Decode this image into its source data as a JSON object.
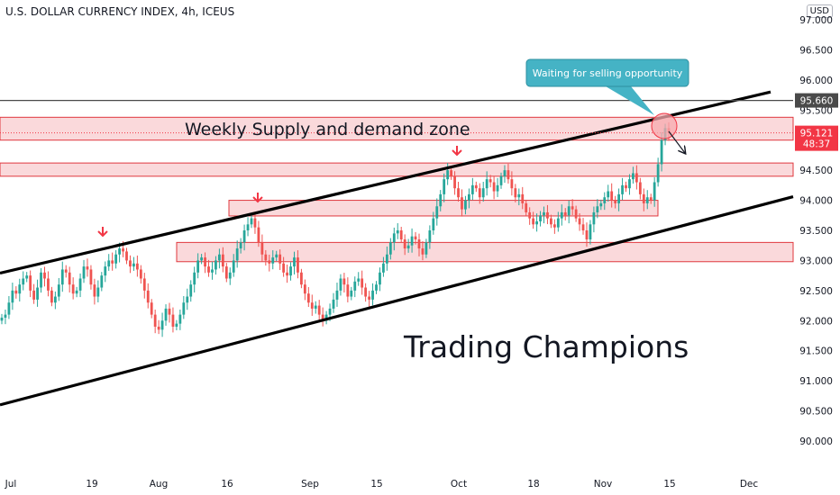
{
  "header": {
    "title": "U.S. DOLLAR CURRENCY INDEX, 4h, ICEUS",
    "currency": "USD"
  },
  "chart_data": {
    "type": "candlestick",
    "title": "U.S. DOLLAR CURRENCY INDEX, 4h, ICEUS",
    "y_ticks": [
      "97.000",
      "96.500",
      "96.000",
      "95.500",
      "95.000",
      "94.500",
      "94.000",
      "93.500",
      "93.000",
      "92.500",
      "92.000",
      "91.500",
      "91.000",
      "90.500",
      "90.000"
    ],
    "y_tick_values": [
      97.0,
      96.5,
      96.0,
      95.5,
      95.0,
      94.5,
      94.0,
      93.5,
      93.0,
      92.5,
      92.0,
      91.5,
      91.0,
      90.5,
      90.0
    ],
    "x_ticks": [
      "Jul",
      "19",
      "Aug",
      "16",
      "Sep",
      "15",
      "Oct",
      "18",
      "Nov",
      "15",
      "Dec"
    ],
    "ylim": [
      89.75,
      97.1
    ],
    "price_tags": {
      "resistance": {
        "value": "95.660",
        "color": "#4a4a4a"
      },
      "last": {
        "value": "95.121",
        "countdown": "48:37",
        "color": "#f23645"
      }
    },
    "resistance_level": 95.66,
    "zones": [
      {
        "name": "weekly-supply-demand",
        "low": 95.0,
        "high": 95.38
      },
      {
        "name": "zone-94-5",
        "low": 94.4,
        "high": 94.62
      },
      {
        "name": "zone-93-9",
        "low": 93.74,
        "high": 94.0
      },
      {
        "name": "zone-93-1",
        "low": 92.98,
        "high": 93.3
      }
    ],
    "channel_upper": {
      "start": 92.79,
      "end": 95.8
    },
    "channel_lower": {
      "start": 90.6,
      "end": 94.06
    },
    "annotations": {
      "zone_label": "Weekly Supply and demand zone",
      "callout": "Waiting for selling opportunity",
      "watermark": "Trading Champions"
    },
    "close_series": [
      92.05,
      92.1,
      92.3,
      92.5,
      92.45,
      92.6,
      92.7,
      92.75,
      92.5,
      92.35,
      92.55,
      92.8,
      92.7,
      92.5,
      92.3,
      92.4,
      92.6,
      92.85,
      92.8,
      92.6,
      92.45,
      92.5,
      92.7,
      92.9,
      92.85,
      92.6,
      92.4,
      92.55,
      92.75,
      92.9,
      93.0,
      92.95,
      93.1,
      93.2,
      93.15,
      93.0,
      92.9,
      92.95,
      92.85,
      92.7,
      92.5,
      92.3,
      92.1,
      91.9,
      91.85,
      92.0,
      92.2,
      92.1,
      91.9,
      91.95,
      92.1,
      92.3,
      92.4,
      92.6,
      92.8,
      93.0,
      93.05,
      92.9,
      92.8,
      92.85,
      93.0,
      93.1,
      92.9,
      92.7,
      92.8,
      93.0,
      93.2,
      93.3,
      93.5,
      93.6,
      93.7,
      93.55,
      93.3,
      93.1,
      93.0,
      92.95,
      93.05,
      93.1,
      92.95,
      92.8,
      92.75,
      92.9,
      93.05,
      92.8,
      92.6,
      92.45,
      92.3,
      92.2,
      92.25,
      92.1,
      92.0,
      92.1,
      92.2,
      92.35,
      92.5,
      92.7,
      92.6,
      92.4,
      92.5,
      92.65,
      92.7,
      92.55,
      92.4,
      92.35,
      92.5,
      92.6,
      92.8,
      92.95,
      93.1,
      93.3,
      93.45,
      93.5,
      93.35,
      93.2,
      93.25,
      93.4,
      93.35,
      93.2,
      93.1,
      93.3,
      93.5,
      93.7,
      93.9,
      94.1,
      94.35,
      94.5,
      94.4,
      94.2,
      94.05,
      93.85,
      94.0,
      94.1,
      94.25,
      94.2,
      94.05,
      94.2,
      94.35,
      94.3,
      94.15,
      94.25,
      94.4,
      94.5,
      94.35,
      94.2,
      94.05,
      94.1,
      93.95,
      93.8,
      93.7,
      93.6,
      93.65,
      93.75,
      93.8,
      93.7,
      93.6,
      93.55,
      93.7,
      93.8,
      93.75,
      93.9,
      93.85,
      93.7,
      93.6,
      93.5,
      93.35,
      93.6,
      93.8,
      93.9,
      93.95,
      94.05,
      94.15,
      94.0,
      93.95,
      94.1,
      94.25,
      94.2,
      94.35,
      94.45,
      94.3,
      94.1,
      93.95,
      94.05,
      94.0,
      94.3,
      94.6,
      95.0,
      95.2,
      95.12
    ]
  }
}
